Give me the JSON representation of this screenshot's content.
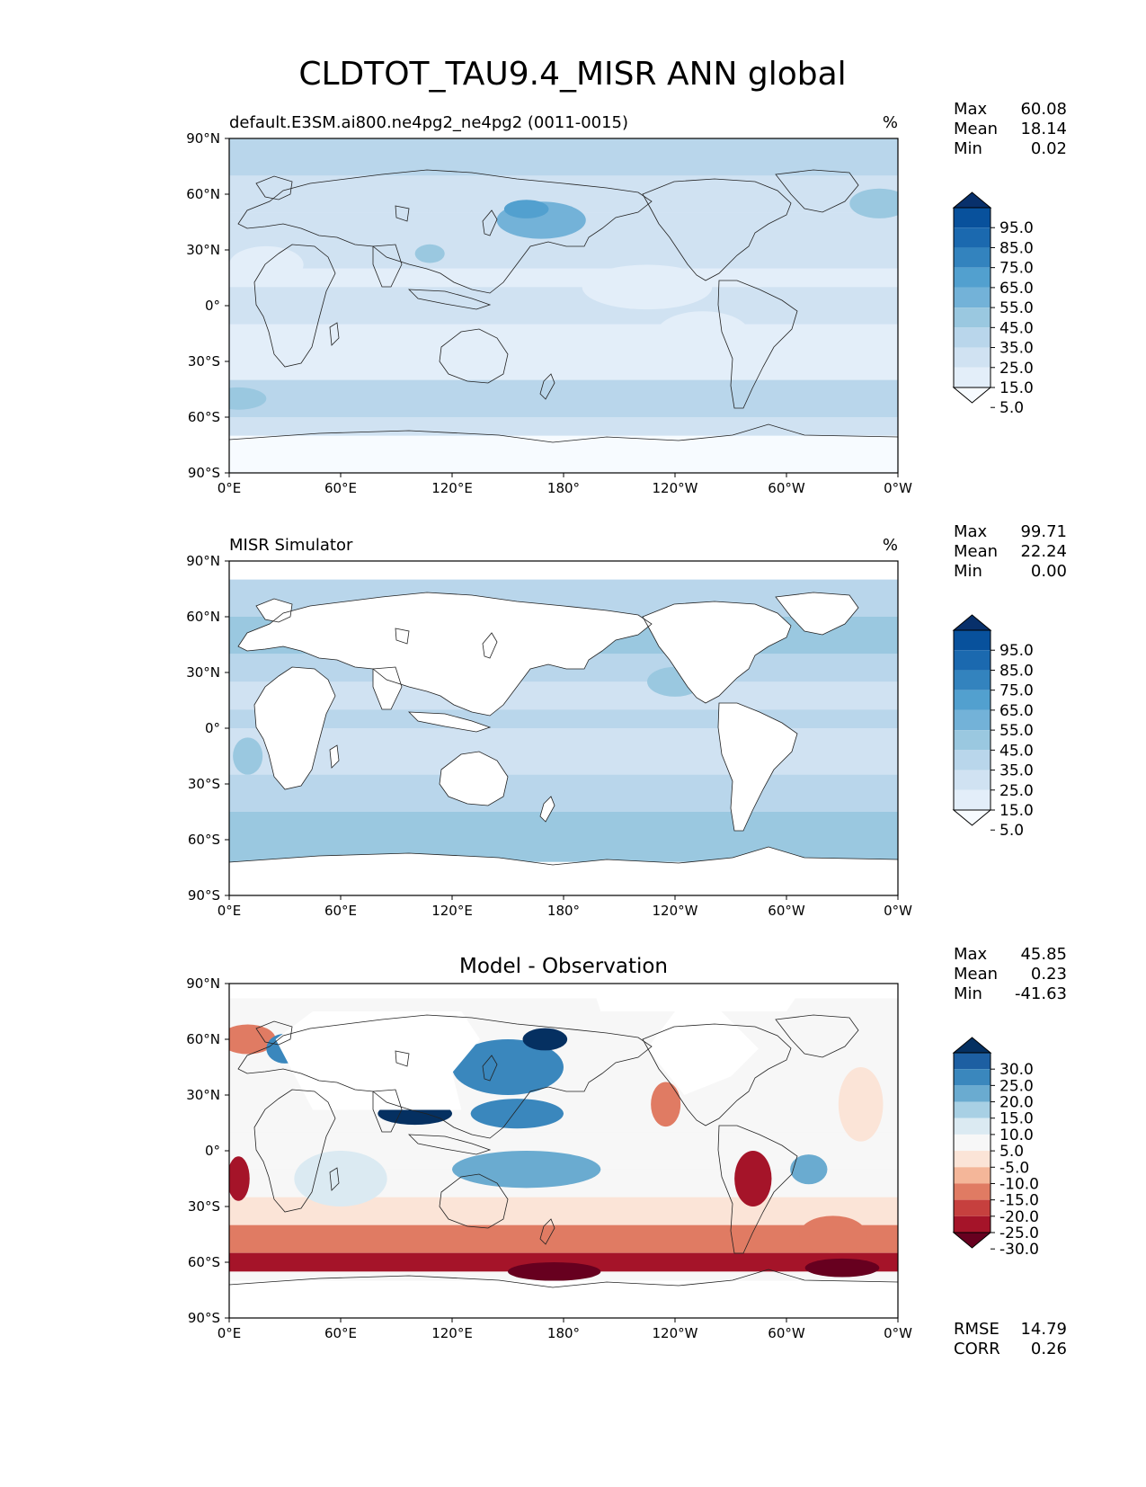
{
  "figure": {
    "title": "CLDTOT_TAU9.4_MISR ANN global"
  },
  "axes": {
    "lat_ticks": [
      "90°N",
      "60°N",
      "30°N",
      "0°",
      "30°S",
      "60°S",
      "90°S"
    ],
    "lon_ticks": [
      "0°E",
      "60°E",
      "120°E",
      "180°",
      "120°W",
      "60°W",
      "0°W"
    ]
  },
  "colors": {
    "blues": [
      "#f7fbff",
      "#e3eef9",
      "#d0e2f2",
      "#b9d6eb",
      "#9ac8e0",
      "#73b2d8",
      "#52a0cf",
      "#3383be",
      "#1b69af",
      "#08519c",
      "#08306b"
    ],
    "diff": [
      "#67001f",
      "#a51429",
      "#c6403e",
      "#e07b63",
      "#f4b699",
      "#fbe4d7",
      "#f7f7f7",
      "#dbeaf2",
      "#a8d0e4",
      "#6aabd0",
      "#3a87bd",
      "#1d5fa2",
      "#053061"
    ],
    "land_outline": "#222222"
  },
  "chart_data": [
    {
      "type": "heatmap",
      "panel": "test",
      "title_left": "default.E3SM.ai800.ne4pg2_ne4pg2 (0011-0015)",
      "title_right": "%",
      "stats": {
        "labels": [
          "Max",
          "Mean",
          "Min"
        ],
        "values": [
          "60.08",
          "18.14",
          "0.02"
        ]
      },
      "colorbar": {
        "levels": [
          "95.0",
          "85.0",
          "75.0",
          "65.0",
          "55.0",
          "45.0",
          "35.0",
          "25.0",
          "15.0",
          "5.0"
        ]
      },
      "xlim": [
        0,
        360
      ],
      "ylim": [
        -90,
        90
      ],
      "fields": [
        {
          "lat": [
            70,
            90
          ],
          "value": 25
        },
        {
          "lat": [
            60,
            70
          ],
          "value": 20
        },
        {
          "lat": [
            50,
            60
          ],
          "value": 20
        },
        {
          "lat": [
            20,
            50
          ],
          "value": 15
        },
        {
          "lat": [
            10,
            20
          ],
          "value": 12
        },
        {
          "lat": [
            -10,
            10
          ],
          "value": 15
        },
        {
          "lat": [
            -40,
            -10
          ],
          "value": 12
        },
        {
          "lat": [
            -60,
            -40
          ],
          "value": 25
        },
        {
          "lat": [
            -70,
            -60
          ],
          "value": 15
        },
        {
          "lat": [
            -90,
            -70
          ],
          "value": 3
        }
      ],
      "blobs": [
        {
          "lon": 168,
          "lat": 46,
          "rlon": 24,
          "rlat": 10,
          "value": 45
        },
        {
          "lon": 160,
          "lat": 52,
          "rlon": 12,
          "rlat": 5,
          "value": 55
        },
        {
          "lon": 108,
          "lat": 28,
          "rlon": 8,
          "rlat": 5,
          "value": 40
        },
        {
          "lon": 350,
          "lat": 55,
          "rlon": 16,
          "rlat": 8,
          "value": 35
        },
        {
          "lon": 225,
          "lat": 10,
          "rlon": 35,
          "rlat": 12,
          "value": 8
        },
        {
          "lon": 255,
          "lat": -15,
          "rlon": 25,
          "rlat": 12,
          "value": 5
        },
        {
          "lon": 20,
          "lat": 22,
          "rlon": 20,
          "rlat": 10,
          "value": 5
        },
        {
          "lon": 5,
          "lat": -50,
          "rlon": 15,
          "rlat": 6,
          "value": 35
        }
      ]
    },
    {
      "type": "heatmap",
      "panel": "reference",
      "title_left": "MISR Simulator",
      "title_right": "%",
      "stats": {
        "labels": [
          "Max",
          "Mean",
          "Min"
        ],
        "values": [
          "99.71",
          "22.24",
          "0.00"
        ]
      },
      "colorbar": {
        "levels": [
          "95.0",
          "85.0",
          "75.0",
          "65.0",
          "55.0",
          "45.0",
          "35.0",
          "25.0",
          "15.0",
          "5.0"
        ]
      },
      "xlim": [
        0,
        360
      ],
      "ylim": [
        -90,
        90
      ],
      "fields": [
        {
          "lat": [
            80,
            90
          ],
          "value": -1
        },
        {
          "lat": [
            60,
            80
          ],
          "value": 30
        },
        {
          "lat": [
            40,
            60
          ],
          "value": 35
        },
        {
          "lat": [
            25,
            40
          ],
          "value": 25
        },
        {
          "lat": [
            10,
            25
          ],
          "value": 15
        },
        {
          "lat": [
            0,
            10
          ],
          "value": 25
        },
        {
          "lat": [
            -25,
            0
          ],
          "value": 15
        },
        {
          "lat": [
            -45,
            -25
          ],
          "value": 25
        },
        {
          "lat": [
            -60,
            -45
          ],
          "value": 40
        },
        {
          "lat": [
            -72,
            -60
          ],
          "value": 35
        },
        {
          "lat": [
            -90,
            -72
          ],
          "value": -1
        }
      ],
      "blobs": [
        {
          "lon": 280,
          "lat": -15,
          "rlon": 8,
          "rlat": 12,
          "value": 40
        },
        {
          "lon": 10,
          "lat": -15,
          "rlon": 8,
          "rlat": 10,
          "value": 35
        },
        {
          "lon": 240,
          "lat": 25,
          "rlon": 15,
          "rlat": 8,
          "value": 35
        }
      ]
    },
    {
      "type": "heatmap",
      "panel": "difference",
      "title_center": "Model - Observation",
      "stats": {
        "labels": [
          "Max",
          "Mean",
          "Min"
        ],
        "values": [
          "45.85",
          "0.23",
          "-41.63"
        ]
      },
      "colorbar": {
        "levels": [
          "30.0",
          "25.0",
          "20.0",
          "15.0",
          "10.0",
          "5.0",
          "-5.0",
          "-10.0",
          "-15.0",
          "-20.0",
          "-25.0",
          "-30.0"
        ]
      },
      "metrics": {
        "labels": [
          "RMSE",
          "CORR"
        ],
        "values": [
          "14.79",
          "0.26"
        ]
      },
      "xlim": [
        0,
        360
      ],
      "ylim": [
        -90,
        90
      ],
      "fields": [
        {
          "lat": [
            -10,
            10
          ],
          "value": 0
        },
        {
          "lat": [
            -40,
            -25
          ],
          "value": -10
        },
        {
          "lat": [
            -55,
            -40
          ],
          "value": -20
        },
        {
          "lat": [
            -65,
            -55
          ],
          "value": -30
        }
      ],
      "blobs": [
        {
          "lon": 150,
          "lat": 45,
          "rlon": 30,
          "rlat": 15,
          "value": 20
        },
        {
          "lon": 170,
          "lat": 60,
          "rlon": 12,
          "rlat": 6,
          "value": 32
        },
        {
          "lon": 100,
          "lat": 20,
          "rlon": 20,
          "rlat": 6,
          "value": 32
        },
        {
          "lon": 155,
          "lat": 20,
          "rlon": 25,
          "rlat": 8,
          "value": 22
        },
        {
          "lon": 160,
          "lat": -10,
          "rlon": 40,
          "rlat": 10,
          "value": 15
        },
        {
          "lon": 10,
          "lat": 60,
          "rlon": 15,
          "rlat": 8,
          "value": -20
        },
        {
          "lon": 30,
          "lat": 55,
          "rlon": 10,
          "rlat": 8,
          "value": 20
        },
        {
          "lon": 5,
          "lat": -15,
          "rlon": 6,
          "rlat": 12,
          "value": -30
        },
        {
          "lon": 282,
          "lat": -15,
          "rlon": 10,
          "rlat": 15,
          "value": -30
        },
        {
          "lon": 235,
          "lat": 25,
          "rlon": 8,
          "rlat": 12,
          "value": -20
        },
        {
          "lon": 312,
          "lat": -10,
          "rlon": 10,
          "rlat": 8,
          "value": 15
        },
        {
          "lon": 325,
          "lat": -45,
          "rlon": 18,
          "rlat": 10,
          "value": -20
        },
        {
          "lon": 340,
          "lat": 25,
          "rlon": 12,
          "rlat": 20,
          "value": -10
        },
        {
          "lon": 60,
          "lat": -15,
          "rlon": 25,
          "rlat": 15,
          "value": 5
        },
        {
          "lon": 175,
          "lat": -65,
          "rlon": 25,
          "rlat": 5,
          "value": -35
        },
        {
          "lon": 330,
          "lat": -63,
          "rlon": 20,
          "rlat": 5,
          "value": -35
        }
      ],
      "masks": [
        {
          "points": [
            [
              25,
              60
            ],
            [
              45,
              75
            ],
            [
              125,
              75
            ],
            [
              135,
              60
            ],
            [
              120,
              42
            ],
            [
              125,
              22
            ],
            [
              45,
              22
            ]
          ]
        },
        {
          "points": [
            [
              225,
              55
            ],
            [
              240,
              75
            ],
            [
              265,
              75
            ],
            [
              285,
              55
            ],
            [
              270,
              40
            ],
            [
              245,
              30
            ]
          ]
        },
        {
          "points": [
            [
              195,
              90
            ],
            [
              200,
              75
            ],
            [
              300,
              75
            ],
            [
              310,
              90
            ]
          ]
        },
        {
          "points": [
            [
              0,
              90
            ],
            [
              0,
              82
            ],
            [
              360,
              82
            ],
            [
              360,
              90
            ]
          ]
        },
        {
          "points": [
            [
              0,
              -90
            ],
            [
              0,
              -70
            ],
            [
              360,
              -70
            ],
            [
              360,
              -90
            ]
          ]
        }
      ]
    }
  ]
}
